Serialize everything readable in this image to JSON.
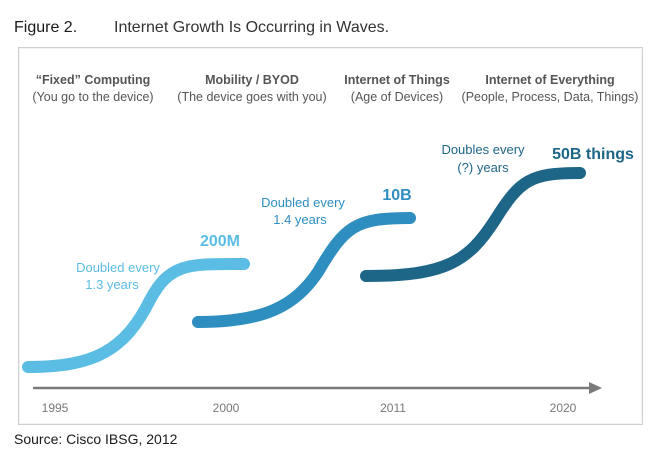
{
  "figure": {
    "number": "Figure 2.",
    "title": "Internet Growth Is Occurring in Waves."
  },
  "eras": [
    {
      "heading": "“Fixed” Computing",
      "subheading": "(You go to the device)"
    },
    {
      "heading": "Mobility / BYOD",
      "subheading": "(The device goes with you)"
    },
    {
      "heading": "Internet of Things",
      "subheading": "(Age of Devices)"
    },
    {
      "heading": "Internet of Everything",
      "subheading": "(People, Process, Data, Things)"
    }
  ],
  "waves": [
    {
      "end_label": "200M",
      "growth_line1": "Doubled every",
      "growth_line2": "1.3 years",
      "color": "#5bbde4"
    },
    {
      "end_label": "10B",
      "growth_line1": "Doubled every",
      "growth_line2": "1.4 years",
      "color": "#2e8ec0"
    },
    {
      "end_label": "50B things",
      "growth_line1": "Doubles every",
      "growth_line2": "(?) years",
      "color": "#1e6688"
    }
  ],
  "timeline": {
    "years": [
      "1995",
      "2000",
      "2011",
      "2020"
    ],
    "axis_color": "#7a7a7a"
  },
  "source": "Source: Cisco IBSG, 2012"
}
